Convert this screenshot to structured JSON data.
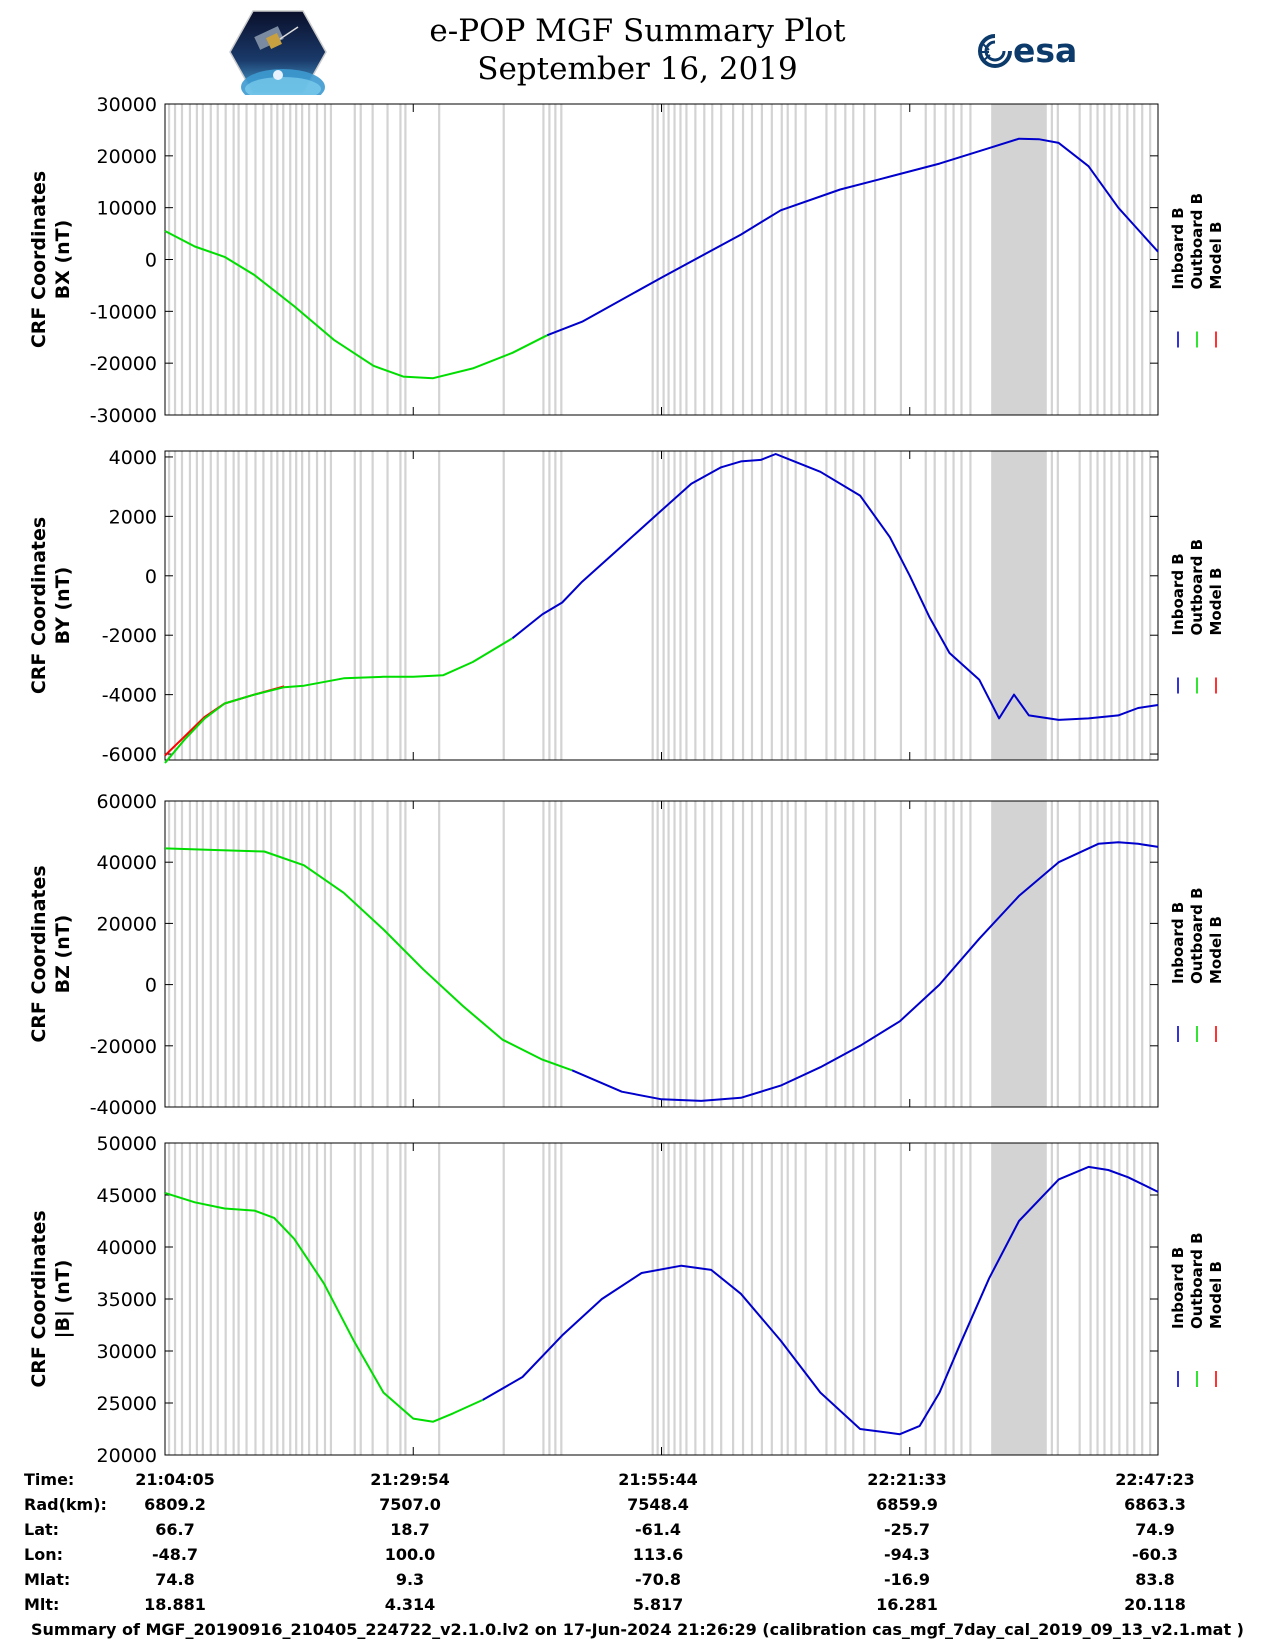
{
  "title": {
    "line1": "e-POP MGF Summary Plot",
    "line2": "September 16, 2019"
  },
  "logo_right_text": "esa",
  "logo_left_icon": "cassiope-mission-patch-icon",
  "colors": {
    "inboard": "#0000cc",
    "outboard": "#00dd00",
    "model": "#ff0000",
    "gap": "#d3d3d3",
    "axis": "#000000"
  },
  "legend": [
    "Inboard B",
    "Outboard B",
    "Model B"
  ],
  "x_tick_labels": [
    "21:04:05",
    "21:29:54",
    "21:55:44",
    "22:21:33",
    "22:47:23"
  ],
  "chart_data": [
    {
      "type": "line",
      "title": "CRF Coordinates BX",
      "ylabel_line1": "CRF Coordinates",
      "ylabel_line2": "BX (nT)",
      "ylim": [
        -30000,
        30000
      ],
      "yticks": [
        30000,
        20000,
        10000,
        0,
        -10000,
        -20000,
        -30000
      ],
      "yticklabels": [
        "30000",
        "20000",
        "10000",
        "0",
        "-10000",
        "-20000",
        "-30000"
      ],
      "xlim": [
        0,
        100
      ],
      "series": [
        {
          "name": "Inboard B",
          "x": [
            38.5,
            42,
            50,
            58,
            62,
            68,
            72,
            78,
            83,
            86,
            88,
            90,
            93,
            96,
            100
          ],
          "values": [
            -14600,
            -12000,
            -3500,
            4800,
            9500,
            13500,
            15500,
            18500,
            21500,
            23300,
            23200,
            22500,
            18000,
            10000,
            1500
          ]
        },
        {
          "name": "Outboard B",
          "x": [
            0,
            3,
            6,
            9,
            13,
            17,
            21,
            24,
            27,
            31,
            35,
            38.5
          ],
          "values": [
            5500,
            2500,
            500,
            -3000,
            -9000,
            -15500,
            -20500,
            -22600,
            -22900,
            -21000,
            -18000,
            -14600
          ]
        },
        {
          "name": "Model B",
          "x": [],
          "values": []
        }
      ]
    },
    {
      "type": "line",
      "title": "CRF Coordinates BY",
      "ylabel_line1": "CRF Coordinates",
      "ylabel_line2": "BY (nT)",
      "ylim": [
        -6200,
        4200
      ],
      "yticks": [
        4000,
        2000,
        0,
        -2000,
        -4000,
        -6000
      ],
      "yticklabels": [
        "4000",
        "2000",
        "0",
        "-2000",
        "-4000",
        "-6000"
      ],
      "xlim": [
        0,
        100
      ],
      "series": [
        {
          "name": "Inboard B",
          "x": [
            35,
            38,
            40,
            42,
            46,
            50,
            53,
            56,
            58,
            60,
            61.5,
            63,
            66,
            70,
            73,
            75,
            77,
            79,
            82,
            84,
            85.5,
            87,
            90,
            93,
            96,
            98,
            100
          ],
          "values": [
            -2100,
            -1300,
            -900,
            -200,
            1000,
            2200,
            3100,
            3650,
            3850,
            3900,
            4100,
            3900,
            3500,
            2700,
            1300,
            0,
            -1400,
            -2600,
            -3500,
            -4800,
            -4000,
            -4700,
            -4850,
            -4800,
            -4700,
            -4450,
            -4350
          ]
        },
        {
          "name": "Outboard B",
          "x": [
            0,
            2,
            4,
            6,
            9,
            12,
            14,
            18,
            22,
            25,
            28,
            31,
            35
          ],
          "values": [
            -6300,
            -5500,
            -4800,
            -4300,
            -4000,
            -3750,
            -3700,
            -3450,
            -3400,
            -3400,
            -3350,
            -2900,
            -2100
          ]
        },
        {
          "name": "Model B",
          "x": [
            0,
            2,
            4,
            6,
            9,
            12
          ],
          "values": [
            -6050,
            -5400,
            -4750,
            -4300,
            -4000,
            -3720
          ]
        }
      ]
    },
    {
      "type": "line",
      "title": "CRF Coordinates BZ",
      "ylabel_line1": "CRF Coordinates",
      "ylabel_line2": "BZ (nT)",
      "ylim": [
        -40000,
        60000
      ],
      "yticks": [
        60000,
        40000,
        20000,
        0,
        -20000,
        -40000
      ],
      "yticklabels": [
        "60000",
        "40000",
        "20000",
        "0",
        "-20000",
        "-40000"
      ],
      "xlim": [
        0,
        100
      ],
      "series": [
        {
          "name": "Inboard B",
          "x": [
            41,
            46,
            50,
            54,
            58,
            62,
            66,
            70,
            74,
            78,
            82,
            86,
            90,
            94,
            96,
            98,
            100
          ],
          "values": [
            -28000,
            -35000,
            -37500,
            -38000,
            -37000,
            -33000,
            -27000,
            -20000,
            -12000,
            0,
            15000,
            29000,
            40000,
            46000,
            46500,
            46000,
            45000
          ]
        },
        {
          "name": "Outboard B",
          "x": [
            0,
            5,
            10,
            14,
            18,
            22,
            26,
            30,
            34,
            38,
            41
          ],
          "values": [
            44500,
            44000,
            43500,
            39000,
            30000,
            18000,
            5000,
            -7000,
            -18000,
            -24500,
            -28000
          ]
        },
        {
          "name": "Model B",
          "x": [],
          "values": []
        }
      ]
    },
    {
      "type": "line",
      "title": "CRF Coordinates |B|",
      "ylabel_line1": "CRF Coordinates",
      "ylabel_line2": "|B| (nT)",
      "ylim": [
        20000,
        50000
      ],
      "yticks": [
        50000,
        45000,
        40000,
        35000,
        30000,
        25000,
        20000
      ],
      "yticklabels": [
        "50000",
        "45000",
        "40000",
        "35000",
        "30000",
        "25000",
        "20000"
      ],
      "xlim": [
        0,
        100
      ],
      "series": [
        {
          "name": "Inboard B",
          "x": [
            32,
            36,
            40,
            44,
            48,
            52,
            55,
            58,
            62,
            66,
            70,
            74,
            76,
            78,
            80,
            83,
            86,
            90,
            93,
            95,
            97,
            100
          ],
          "values": [
            25300,
            27500,
            31500,
            35000,
            37500,
            38200,
            37800,
            35500,
            31000,
            26000,
            22500,
            22000,
            22800,
            26000,
            30500,
            37000,
            42500,
            46500,
            47700,
            47400,
            46700,
            45300
          ]
        },
        {
          "name": "Outboard B",
          "x": [
            0,
            3,
            6,
            9,
            11,
            13,
            16,
            19,
            22,
            25,
            27,
            29,
            32
          ],
          "values": [
            45200,
            44300,
            43700,
            43500,
            42800,
            40800,
            36500,
            31000,
            26000,
            23500,
            23200,
            24000,
            25300
          ]
        },
        {
          "name": "Model B",
          "x": [],
          "values": []
        }
      ]
    }
  ],
  "info_table": {
    "rows": [
      {
        "label": "Time:",
        "values": [
          "21:04:05",
          "21:29:54",
          "21:55:44",
          "22:21:33",
          "22:47:23"
        ]
      },
      {
        "label": "Rad(km):",
        "values": [
          "6809.2",
          "7507.0",
          "7548.4",
          "6859.9",
          "6863.3"
        ]
      },
      {
        "label": "Lat:",
        "values": [
          "66.7",
          "18.7",
          "-61.4",
          "-25.7",
          "74.9"
        ]
      },
      {
        "label": "Lon:",
        "values": [
          "-48.7",
          "100.0",
          "113.6",
          "-94.3",
          "-60.3"
        ]
      },
      {
        "label": "Mlat:",
        "values": [
          "74.8",
          "9.3",
          "-70.8",
          "-16.9",
          "83.8"
        ]
      },
      {
        "label": "Mlt:",
        "values": [
          "18.881",
          "4.314",
          "5.817",
          "16.281",
          "20.118"
        ]
      }
    ]
  },
  "footer": "Summary of MGF_20190916_210405_224722_v2.1.0.lv2 on 17-Jun-2024 21:26:29 (calibration cas_mgf_7day_cal_2019_09_13_v2.1.mat )"
}
